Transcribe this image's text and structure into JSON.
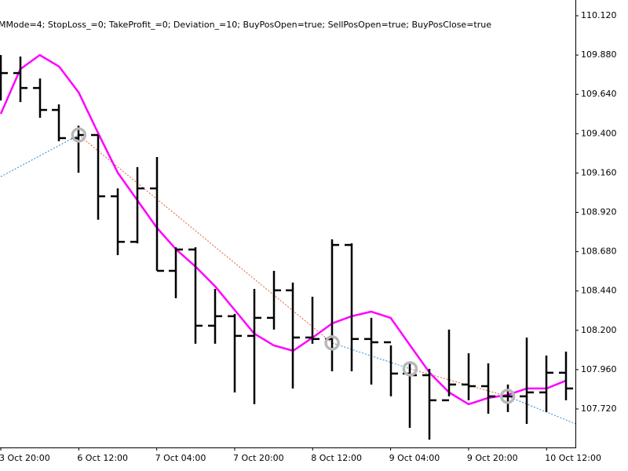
{
  "chart_data": {
    "type": "ohlc",
    "title": "MMode=4; StopLoss_=0; TakeProfit_=0; Deviation_=10; BuyPosOpen=true; SellPosOpen=true; BuyPosClose=true",
    "categories": [
      "3 Oct 20:00",
      null,
      null,
      null,
      "6 Oct 12:00",
      null,
      null,
      null,
      "7 Oct 04:00",
      null,
      null,
      null,
      "7 Oct 20:00",
      null,
      null,
      null,
      "8 Oct 12:00",
      null,
      null,
      null,
      "9 Oct 04:00",
      null,
      null,
      null,
      "9 Oct 20:00",
      null,
      null,
      null,
      "10 Oct 12:00",
      null
    ],
    "open": [
      109.77,
      109.77,
      109.679,
      109.545,
      109.373,
      109.392,
      109.018,
      108.74,
      109.066,
      108.563,
      108.693,
      108.228,
      108.286,
      108.166,
      108.276,
      108.444,
      108.156,
      108.147,
      108.721,
      108.147,
      108.127,
      107.936,
      107.926,
      107.773,
      107.869,
      107.859,
      107.797,
      107.797,
      107.821,
      107.941
    ],
    "high": [
      109.88,
      109.871,
      109.737,
      109.579,
      109.449,
      109.392,
      109.066,
      109.196,
      109.258,
      108.707,
      108.707,
      108.453,
      108.3,
      108.453,
      108.563,
      108.491,
      108.405,
      108.755,
      108.731,
      108.276,
      108.108,
      107.998,
      107.965,
      108.204,
      108.06,
      107.998,
      107.869,
      108.156,
      108.046,
      108.07
    ],
    "low": [
      109.603,
      109.593,
      109.497,
      109.354,
      109.162,
      108.875,
      108.659,
      108.731,
      108.563,
      108.396,
      108.118,
      108.118,
      107.821,
      107.749,
      108.204,
      107.845,
      108.118,
      107.95,
      107.95,
      107.869,
      107.797,
      107.605,
      107.533,
      107.797,
      107.773,
      107.691,
      107.701,
      107.629,
      107.701,
      107.773
    ],
    "close": [
      109.77,
      109.679,
      109.545,
      109.373,
      109.392,
      109.018,
      108.74,
      109.066,
      108.563,
      108.693,
      108.228,
      108.286,
      108.166,
      108.276,
      108.444,
      108.156,
      108.147,
      108.721,
      108.147,
      108.127,
      107.936,
      107.926,
      107.773,
      107.869,
      107.859,
      107.797,
      107.797,
      107.821,
      107.941,
      107.845
    ],
    "bar_color": "#000000",
    "ma": {
      "color": "#ff00ff",
      "values": [
        109.521,
        109.794,
        109.88,
        109.809,
        109.651,
        109.402,
        109.162,
        108.995,
        108.827,
        108.693,
        108.588,
        108.468,
        108.324,
        108.18,
        108.108,
        108.075,
        108.156,
        108.242,
        108.286,
        108.314,
        108.276,
        108.108,
        107.941,
        107.821,
        107.749,
        107.787,
        107.806,
        107.845,
        107.845,
        107.893
      ]
    },
    "deals": [
      {
        "x": 0,
        "price": 109.138,
        "color": "#2a8ad4"
      },
      {
        "x": 4,
        "price": 109.392,
        "color": "#e0603a"
      },
      {
        "x": 17,
        "price": 108.123,
        "color": "#2a8ad4"
      },
      {
        "x": 21,
        "price": 107.965,
        "color": "#e0603a"
      },
      {
        "x": 26,
        "price": 107.797,
        "color": "#2a8ad4"
      },
      {
        "x": 29.5,
        "price": 107.629
      }
    ],
    "ylim": [
      107.485,
      110.216
    ],
    "yticks": [
      {
        "value": 110.12,
        "label": "110.120"
      },
      {
        "value": 109.88,
        "label": "109.880"
      },
      {
        "value": 109.64,
        "label": "109.640"
      },
      {
        "value": 109.4,
        "label": "109.400"
      },
      {
        "value": 109.16,
        "label": "109.160"
      },
      {
        "value": 108.92,
        "label": "108.920"
      },
      {
        "value": 108.68,
        "label": "108.680"
      },
      {
        "value": 108.44,
        "label": "108.440"
      },
      {
        "value": 108.2,
        "label": "108.200"
      },
      {
        "value": 107.96,
        "label": "107.960"
      },
      {
        "value": 107.72,
        "label": "107.720"
      }
    ]
  }
}
